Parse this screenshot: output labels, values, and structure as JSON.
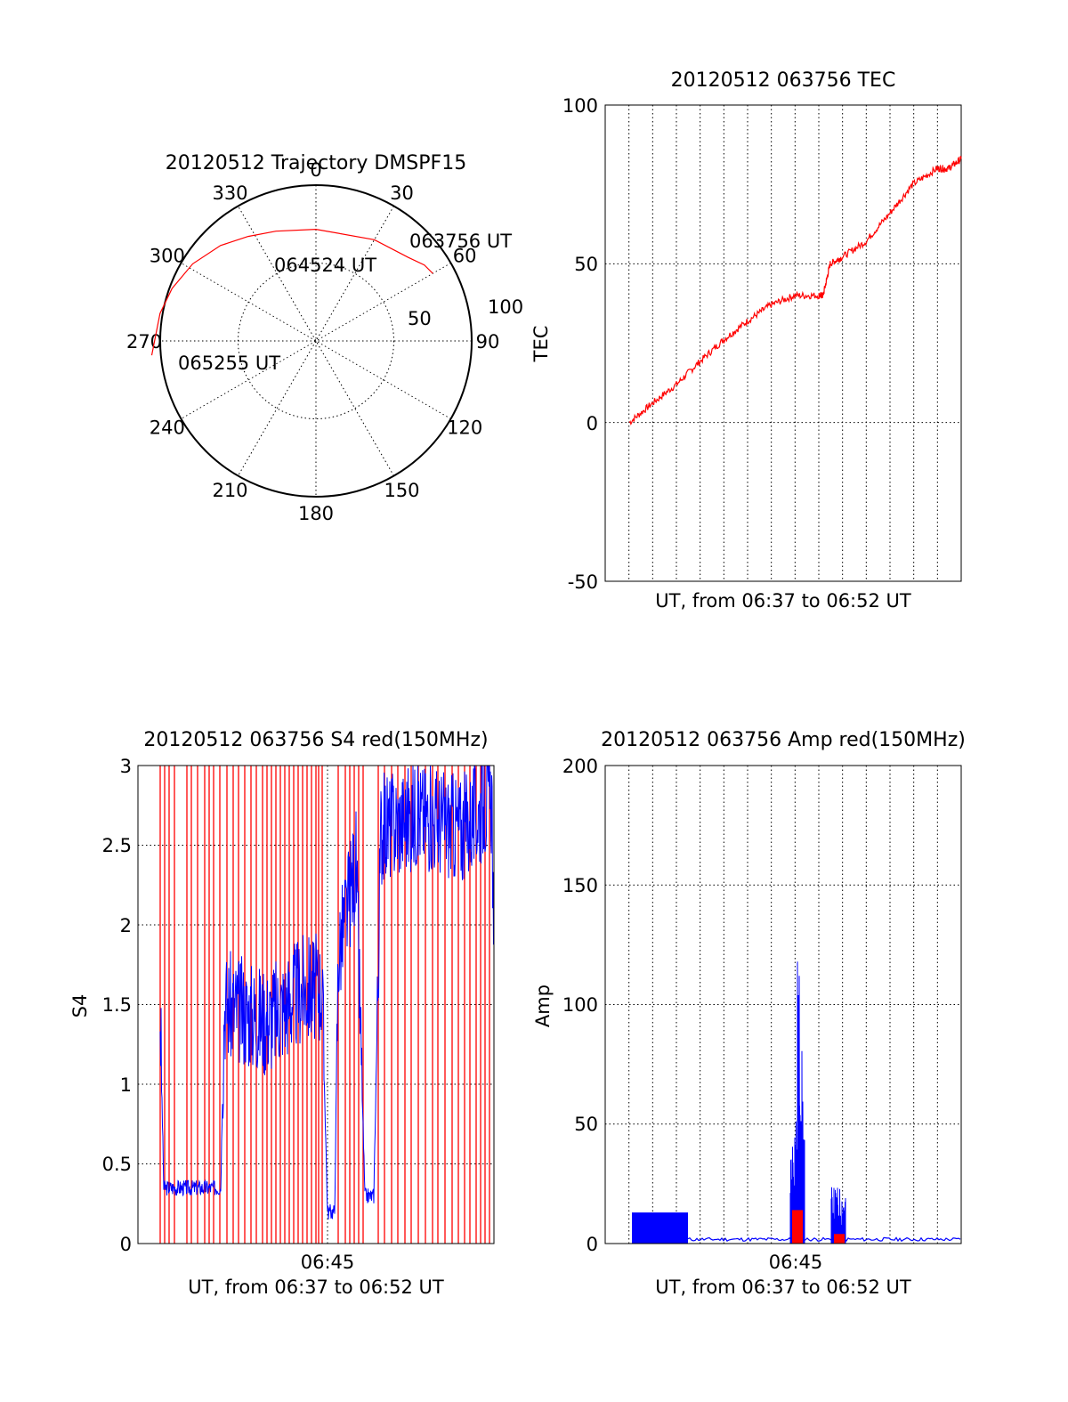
{
  "colors": {
    "red": "#ff0000",
    "blue": "#0000ff"
  },
  "polar": {
    "title": "20120512 Trajectory DMSPF15",
    "azimuth_labels": [
      "0",
      "30",
      "60",
      "90",
      "120",
      "150",
      "180",
      "210",
      "240",
      "270",
      "300",
      "330"
    ],
    "radius_labels": [
      "50",
      "100"
    ],
    "point_labels": [
      "063756 UT",
      "064524 UT",
      "065255 UT"
    ]
  },
  "tec": {
    "title": "20120512 063756 TEC",
    "ylabel": "TEC",
    "xlabel": "UT, from 06:37 to 06:52 UT",
    "yticks": [
      "100",
      "50",
      "0",
      "-50"
    ]
  },
  "s4": {
    "title": "20120512 063756 S4 red(150MHz)",
    "ylabel": "S4",
    "xlabel": "UT, from 06:37 to 06:52 UT",
    "xtick": "06:45",
    "yticks": [
      "3",
      "2.5",
      "2",
      "1.5",
      "1",
      "0.5",
      "0"
    ]
  },
  "amp": {
    "title": "20120512 063756 Amp red(150MHz)",
    "ylabel": "Amp",
    "xlabel": "UT, from 06:37 to 06:52 UT",
    "xtick": "06:45",
    "yticks": [
      "200",
      "150",
      "100",
      "50",
      "0"
    ]
  },
  "chart_data": [
    {
      "type": "scatter",
      "subtype": "polar",
      "title": "20120512 Trajectory DMSPF15",
      "azimuth_deg": [
        0,
        30,
        60,
        90,
        120,
        150,
        180,
        210,
        240,
        270,
        300,
        330
      ],
      "radius_ticks": [
        50,
        100
      ],
      "series": [
        {
          "color": "red",
          "points": [
            {
              "azimuth": 60,
              "zenith": 104,
              "label": "063756 UT"
            },
            {
              "azimuth": 55,
              "zenith": 102
            },
            {
              "azimuth": 48,
              "zenith": 96
            },
            {
              "azimuth": 30,
              "zenith": 90
            },
            {
              "azimuth": 0,
              "zenith": 86
            },
            {
              "azimuth": -20,
              "zenith": 90,
              "label": "064524 UT"
            },
            {
              "azimuth": -33,
              "zenith": 96
            },
            {
              "azimuth": -45,
              "zenith": 104
            },
            {
              "azimuth": -58,
              "zenith": 112
            },
            {
              "azimuth": -70,
              "zenith": 118
            },
            {
              "azimuth": -80,
              "zenith": 122
            },
            {
              "azimuth": -95,
              "zenith": 127,
              "label": "065255 UT"
            }
          ]
        }
      ]
    },
    {
      "type": "line",
      "title": "20120512 063756 TEC",
      "xlabel": "UT, from 06:37 to 06:52 UT",
      "ylabel": "TEC",
      "xlim": [
        6.617,
        6.867
      ],
      "ylim": [
        -50,
        100
      ],
      "series": [
        {
          "color": "red",
          "x": [
            6.634,
            6.65,
            6.667,
            6.683,
            6.7,
            6.717,
            6.733,
            6.75,
            6.767,
            6.77,
            6.775,
            6.783,
            6.8,
            6.817,
            6.833,
            6.85,
            6.858,
            6.867
          ],
          "y": [
            0,
            6,
            12,
            19,
            26,
            32,
            37,
            40,
            40,
            40,
            50,
            52,
            57,
            66,
            75,
            80,
            80,
            83
          ]
        }
      ]
    },
    {
      "type": "line",
      "title": "20120512 063756 S4 red(150MHz)",
      "xlabel": "UT, from 06:37 to 06:52 UT",
      "ylabel": "S4",
      "x_tick_labels": [
        "06:45"
      ],
      "ylim": [
        0,
        3
      ],
      "series": [
        {
          "color": "blue",
          "x": [
            6.62,
            6.625,
            6.63,
            6.67,
            6.68,
            6.72,
            6.74,
            6.747,
            6.75,
            6.76,
            6.77,
            6.78,
            6.79,
            6.8,
            6.82,
            6.84,
            6.86,
            6.867
          ],
          "y": [
            1.45,
            0.35,
            0.35,
            0.35,
            1.5,
            1.5,
            1.6,
            0.2,
            1.6,
            2.5,
            0.2,
            2.6,
            2.7,
            2.8,
            2.7,
            2.6,
            2.8,
            1.3
          ]
        },
        {
          "color": "red",
          "x": [
            6.62,
            6.67,
            6.7,
            6.74,
            6.747,
            6.76,
            6.77,
            6.8,
            6.867
          ],
          "y": [
            3,
            3,
            3,
            3,
            0.15,
            3,
            0.2,
            3,
            3
          ]
        }
      ]
    },
    {
      "type": "line",
      "title": "20120512 063756 Amp red(150MHz)",
      "xlabel": "UT, from 06:37 to 06:52 UT",
      "ylabel": "Amp",
      "x_tick_labels": [
        "06:45"
      ],
      "ylim": [
        0,
        200
      ],
      "series": [
        {
          "color": "blue",
          "x": [
            6.634,
            6.67,
            6.675,
            6.74,
            6.745,
            6.748,
            6.76,
            6.765,
            6.77,
            6.867
          ],
          "y": [
            8,
            8,
            1,
            1,
            40,
            118,
            1,
            15,
            1,
            2
          ]
        },
        {
          "color": "red",
          "x": [
            6.634,
            6.74,
            6.745,
            6.75,
            6.76,
            6.765,
            6.77,
            6.867
          ],
          "y": [
            0,
            0,
            12,
            12,
            0,
            3,
            0,
            0
          ]
        }
      ]
    }
  ]
}
